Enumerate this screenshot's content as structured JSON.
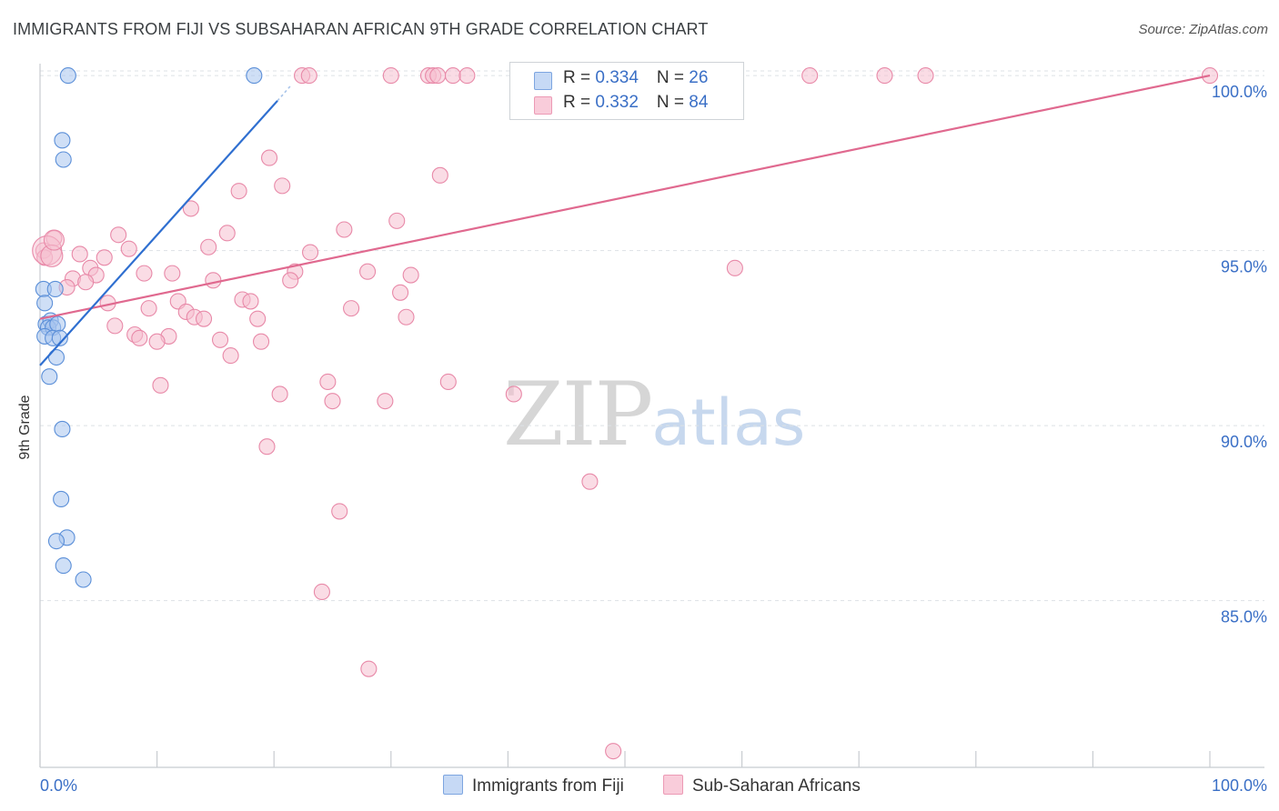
{
  "title": "IMMIGRANTS FROM FIJI VS SUBSAHARAN AFRICAN 9TH GRADE CORRELATION CHART",
  "source": "Source: ZipAtlas.com",
  "watermark": {
    "zip": "ZIP",
    "atlas": "atlas"
  },
  "colors": {
    "blue_fill": "#a8c5ee",
    "blue_stroke": "#5b8fd8",
    "blue_line": "#2f6fd0",
    "pink_fill": "#f6c0d0",
    "pink_stroke": "#e889a8",
    "pink_line": "#e0698f",
    "grid": "#dde1e5",
    "axis": "#c8ccd0",
    "tick_text": "#3a6fc6"
  },
  "legend": {
    "r_label": "R = ",
    "n_label": "N = ",
    "blue": {
      "r": "0.334",
      "n": "26"
    },
    "pink": {
      "r": "0.332",
      "n": "84"
    }
  },
  "chart_data": {
    "type": "scatter",
    "title": "IMMIGRANTS FROM FIJI VS SUBSAHARAN AFRICAN 9TH GRADE CORRELATION CHART",
    "xlabel": "",
    "ylabel": "9th Grade",
    "xlim": [
      0,
      100
    ],
    "ylim": [
      80.6,
      100.6
    ],
    "x_tick_labels": [
      "0.0%",
      "100.0%"
    ],
    "y_ticks": [
      85,
      90,
      95,
      100
    ],
    "y_tick_labels": [
      "85.0%",
      "90.0%",
      "95.0%",
      "100.0%"
    ],
    "grid": true,
    "legend_position": "bottom",
    "series": [
      {
        "name": "Immigrants from Fiji",
        "color": "#a8c5ee",
        "r": 0.334,
        "n": 26,
        "trend": {
          "x": [
            0.0,
            20.3
          ],
          "y": [
            91.72,
            99.28
          ],
          "dashed_extension": {
            "x": [
              20.3,
              21.4
            ],
            "y": [
              99.28,
              99.7
            ]
          }
        },
        "points": [
          {
            "x": 2.4,
            "y": 100.0
          },
          {
            "x": 18.3,
            "y": 100.0
          },
          {
            "x": 1.9,
            "y": 98.15
          },
          {
            "x": 2.0,
            "y": 97.6
          },
          {
            "x": 0.3,
            "y": 93.9
          },
          {
            "x": 1.3,
            "y": 93.9
          },
          {
            "x": 0.4,
            "y": 93.5
          },
          {
            "x": 0.5,
            "y": 92.9
          },
          {
            "x": 0.9,
            "y": 93.0
          },
          {
            "x": 0.7,
            "y": 92.8
          },
          {
            "x": 1.1,
            "y": 92.8
          },
          {
            "x": 1.5,
            "y": 92.9
          },
          {
            "x": 0.4,
            "y": 92.55
          },
          {
            "x": 1.1,
            "y": 92.5
          },
          {
            "x": 1.7,
            "y": 92.5
          },
          {
            "x": 1.4,
            "y": 91.95
          },
          {
            "x": 0.8,
            "y": 91.4
          },
          {
            "x": 1.9,
            "y": 89.9
          },
          {
            "x": 1.8,
            "y": 87.9
          },
          {
            "x": 2.3,
            "y": 86.8
          },
          {
            "x": 1.4,
            "y": 86.7
          },
          {
            "x": 2.0,
            "y": 86.0
          },
          {
            "x": 3.7,
            "y": 85.6
          }
        ]
      },
      {
        "name": "Sub-Saharan Africans",
        "color": "#f6c0d0",
        "r": 0.332,
        "n": 84,
        "trend": {
          "x": [
            0.0,
            100.0
          ],
          "y": [
            93.05,
            100.0
          ]
        },
        "points": [
          {
            "x": 22.4,
            "y": 100.0
          },
          {
            "x": 23.0,
            "y": 100.0
          },
          {
            "x": 30.0,
            "y": 100.0
          },
          {
            "x": 33.2,
            "y": 100.0
          },
          {
            "x": 33.6,
            "y": 100.0
          },
          {
            "x": 34.0,
            "y": 100.0
          },
          {
            "x": 35.3,
            "y": 100.0
          },
          {
            "x": 36.5,
            "y": 100.0
          },
          {
            "x": 65.8,
            "y": 100.0
          },
          {
            "x": 72.2,
            "y": 100.0
          },
          {
            "x": 75.7,
            "y": 100.0
          },
          {
            "x": 100.0,
            "y": 100.0
          },
          {
            "x": 19.6,
            "y": 97.65
          },
          {
            "x": 20.7,
            "y": 96.85
          },
          {
            "x": 34.2,
            "y": 97.15
          },
          {
            "x": 17.0,
            "y": 96.7
          },
          {
            "x": 12.9,
            "y": 96.2
          },
          {
            "x": 30.5,
            "y": 95.85
          },
          {
            "x": 26.0,
            "y": 95.6
          },
          {
            "x": 16.0,
            "y": 95.5
          },
          {
            "x": 6.7,
            "y": 95.45
          },
          {
            "x": 1.2,
            "y": 95.35
          },
          {
            "x": 14.4,
            "y": 95.1
          },
          {
            "x": 7.6,
            "y": 95.05
          },
          {
            "x": 0.3,
            "y": 95.0
          },
          {
            "x": 3.4,
            "y": 94.9
          },
          {
            "x": 5.5,
            "y": 94.8
          },
          {
            "x": 23.1,
            "y": 94.95
          },
          {
            "x": 0.4,
            "y": 94.8
          },
          {
            "x": 4.3,
            "y": 94.5
          },
          {
            "x": 28.0,
            "y": 94.4
          },
          {
            "x": 59.4,
            "y": 94.5
          },
          {
            "x": 8.9,
            "y": 94.35
          },
          {
            "x": 11.3,
            "y": 94.35
          },
          {
            "x": 21.8,
            "y": 94.4
          },
          {
            "x": 31.7,
            "y": 94.3
          },
          {
            "x": 2.8,
            "y": 94.2
          },
          {
            "x": 4.8,
            "y": 94.3
          },
          {
            "x": 14.8,
            "y": 94.15
          },
          {
            "x": 21.4,
            "y": 94.15
          },
          {
            "x": 3.9,
            "y": 94.1
          },
          {
            "x": 2.3,
            "y": 93.95
          },
          {
            "x": 30.8,
            "y": 93.8
          },
          {
            "x": 17.3,
            "y": 93.6
          },
          {
            "x": 18.0,
            "y": 93.55
          },
          {
            "x": 5.8,
            "y": 93.5
          },
          {
            "x": 11.8,
            "y": 93.55
          },
          {
            "x": 9.3,
            "y": 93.35
          },
          {
            "x": 26.6,
            "y": 93.35
          },
          {
            "x": 12.5,
            "y": 93.25
          },
          {
            "x": 31.3,
            "y": 93.1
          },
          {
            "x": 13.2,
            "y": 93.1
          },
          {
            "x": 14.0,
            "y": 93.05
          },
          {
            "x": 18.6,
            "y": 93.05
          },
          {
            "x": 6.4,
            "y": 92.85
          },
          {
            "x": 8.1,
            "y": 92.6
          },
          {
            "x": 8.5,
            "y": 92.5
          },
          {
            "x": 11.0,
            "y": 92.55
          },
          {
            "x": 10.0,
            "y": 92.4
          },
          {
            "x": 15.4,
            "y": 92.45
          },
          {
            "x": 18.9,
            "y": 92.4
          },
          {
            "x": 16.3,
            "y": 92.0
          },
          {
            "x": 24.6,
            "y": 91.25
          },
          {
            "x": 34.9,
            "y": 91.25
          },
          {
            "x": 10.3,
            "y": 91.15
          },
          {
            "x": 20.5,
            "y": 90.9
          },
          {
            "x": 40.5,
            "y": 90.9
          },
          {
            "x": 25.0,
            "y": 90.7
          },
          {
            "x": 29.5,
            "y": 90.7
          },
          {
            "x": 19.4,
            "y": 89.4
          },
          {
            "x": 47.0,
            "y": 88.4
          },
          {
            "x": 25.6,
            "y": 87.55
          },
          {
            "x": 24.1,
            "y": 85.25
          },
          {
            "x": 28.1,
            "y": 83.05
          },
          {
            "x": 49.0,
            "y": 80.7
          }
        ]
      }
    ]
  }
}
